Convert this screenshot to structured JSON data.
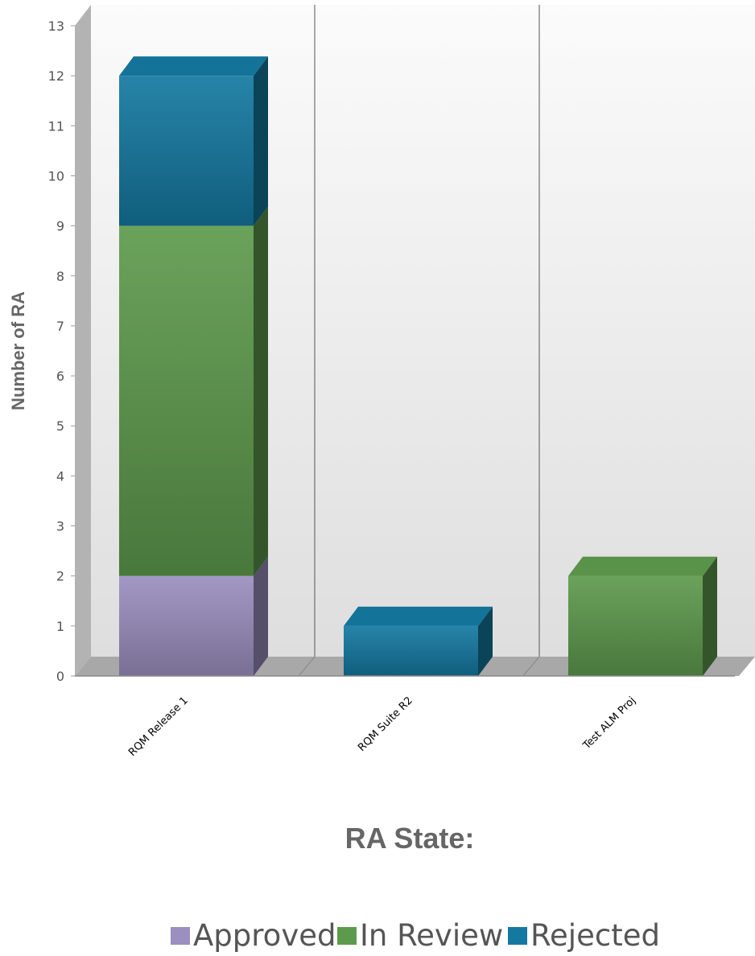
{
  "chart_data": {
    "type": "bar",
    "stacked": true,
    "three_d": true,
    "categories": [
      "RQM Release 1",
      "RQM Suite R2",
      "Test ALM Proj"
    ],
    "series": [
      {
        "name": "Approved",
        "values": [
          2,
          0,
          0
        ],
        "color": "#9b8fbf"
      },
      {
        "name": "In Review",
        "values": [
          7,
          0,
          2
        ],
        "color": "#5e9a4d"
      },
      {
        "name": "Rejected",
        "values": [
          3,
          1,
          0
        ],
        "color": "#1479a0"
      }
    ],
    "title": "",
    "xlabel": "RA State:",
    "ylabel": "Number of RA",
    "ylim": [
      0,
      13
    ],
    "yticks": [
      0,
      1,
      2,
      3,
      4,
      5,
      6,
      7,
      8,
      9,
      10,
      11,
      12,
      13
    ],
    "grid": "vertical category separators",
    "legend_position": "bottom"
  }
}
